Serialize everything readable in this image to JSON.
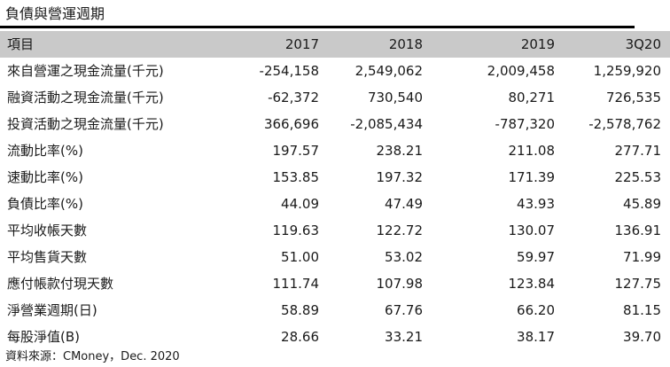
{
  "title": "負債與營運週期",
  "table": {
    "header_label": "項目",
    "columns": [
      "2017",
      "2018",
      "2019",
      "3Q20"
    ],
    "rows": [
      {
        "label": "來自營運之現金流量(千元)",
        "values": [
          "-254,158",
          "2,549,062",
          "2,009,458",
          "1,259,920"
        ]
      },
      {
        "label": "融資活動之現金流量(千元)",
        "values": [
          "-62,372",
          "730,540",
          "80,271",
          "726,535"
        ]
      },
      {
        "label": "投資活動之現金流量(千元)",
        "values": [
          "366,696",
          "-2,085,434",
          "-787,320",
          "-2,578,762"
        ]
      },
      {
        "label": "流動比率(%)",
        "values": [
          "197.57",
          "238.21",
          "211.08",
          "277.71"
        ]
      },
      {
        "label": "速動比率(%)",
        "values": [
          "153.85",
          "197.32",
          "171.39",
          "225.53"
        ]
      },
      {
        "label": "負債比率(%)",
        "values": [
          "44.09",
          "47.49",
          "43.93",
          "45.89"
        ]
      },
      {
        "label": "平均收帳天數",
        "values": [
          "119.63",
          "122.72",
          "130.07",
          "136.91"
        ]
      },
      {
        "label": "平均售貨天數",
        "values": [
          "51.00",
          "53.02",
          "59.97",
          "71.99"
        ]
      },
      {
        "label": "應付帳款付現天數",
        "values": [
          "111.74",
          "107.98",
          "123.84",
          "127.75"
        ]
      },
      {
        "label": "淨營業週期(日)",
        "values": [
          "58.89",
          "67.76",
          "66.20",
          "81.15"
        ]
      },
      {
        "label": "每股淨值(B)",
        "values": [
          "28.66",
          "33.21",
          "38.17",
          "39.70"
        ]
      }
    ]
  },
  "source": "資料來源：CMoney，Dec. 2020",
  "colors": {
    "header_bg": "#c9c9c9",
    "rule": "#000000",
    "text": "#1a1a1a"
  }
}
